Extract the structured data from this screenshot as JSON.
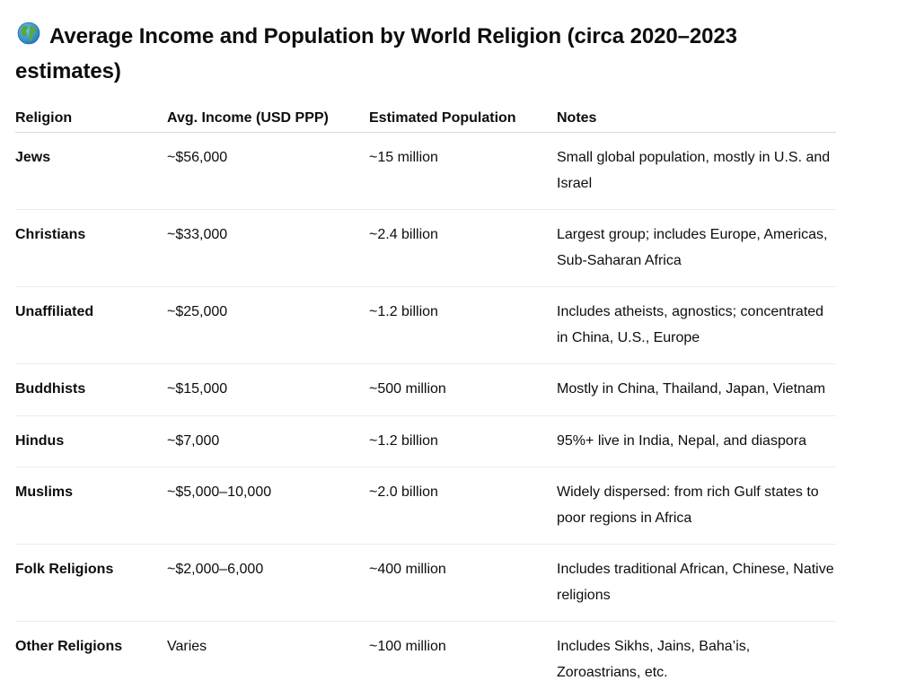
{
  "document": {
    "title": "Average Income and Population by World Religion (circa 2020–2023 estimates)",
    "title_icon": "globe-icon"
  },
  "table": {
    "headers": [
      "Religion",
      "Avg. Income (USD PPP)",
      "Estimated Population",
      "Notes"
    ],
    "rows": [
      {
        "religion": "Jews",
        "income": "~$56,000",
        "population": "~15 million",
        "notes": "Small global population, mostly in U.S. and Israel"
      },
      {
        "religion": "Christians",
        "income": "~$33,000",
        "population": "~2.4 billion",
        "notes": "Largest group; includes Europe, Americas, Sub-Saharan Africa"
      },
      {
        "religion": "Unaffiliated",
        "income": "~$25,000",
        "population": "~1.2 billion",
        "notes": "Includes atheists, agnostics; concentrated in China, U.S., Europe"
      },
      {
        "religion": "Buddhists",
        "income": "~$15,000",
        "population": "~500 million",
        "notes": "Mostly in China, Thailand, Japan, Vietnam"
      },
      {
        "religion": "Hindus",
        "income": "~$7,000",
        "population": "~1.2 billion",
        "notes": "95%+ live in India, Nepal, and diaspora"
      },
      {
        "religion": "Muslims",
        "income": "~$5,000–10,000",
        "population": "~2.0 billion",
        "notes": "Widely dispersed: from rich Gulf states to poor regions in Africa"
      },
      {
        "religion": "Folk Religions",
        "income": "~$2,000–6,000",
        "population": "~400 million",
        "notes": "Includes traditional African, Chinese, Native religions"
      },
      {
        "religion": "Other Religions",
        "income": "Varies",
        "population": "~100 million",
        "notes": "Includes Sikhs, Jains, Baha’is, Zoroastrians, etc."
      }
    ]
  }
}
